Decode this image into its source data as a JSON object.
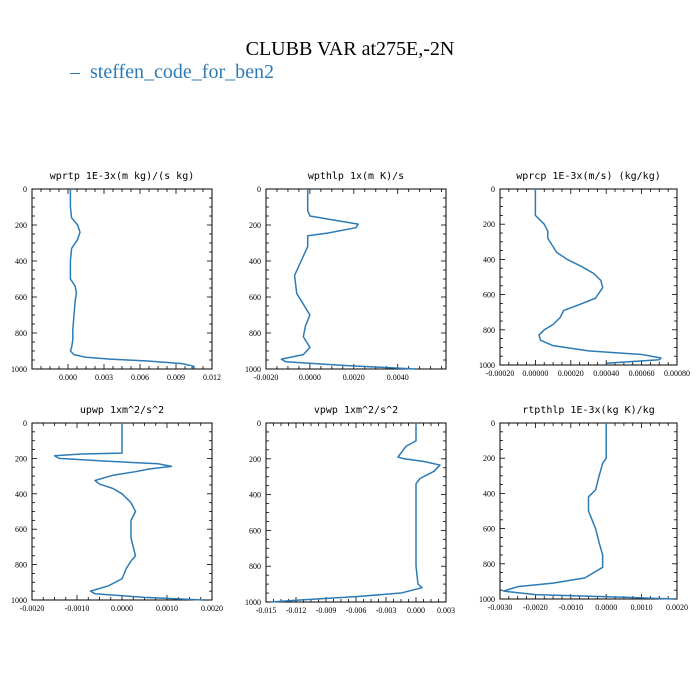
{
  "title": "CLUBB VAR at275E,-2N",
  "legend": [
    {
      "label": "steffen_code_for_ben2",
      "color": "#2c7bb6",
      "marker": "–"
    }
  ],
  "colors": {
    "line": "#2c7bb6",
    "axis": "#000000"
  },
  "chart_data": [
    {
      "type": "line",
      "title": "wprtp  1E-3x(m kg)/(s kg)",
      "xlim": [
        -0.003,
        0.012
      ],
      "ylim": [
        1000,
        0
      ],
      "xticks": [
        0.0,
        0.003,
        0.006,
        0.009,
        0.012
      ],
      "xtick_labels": [
        "0.000",
        "0.003",
        "0.006",
        "0.009",
        "0.012"
      ],
      "yticks": [
        0,
        200,
        400,
        600,
        800,
        1000
      ],
      "ytick_labels": [
        "0",
        "200",
        "400",
        "600",
        "800",
        "1000"
      ],
      "series": [
        {
          "x": [
            0.0002,
            0.0002,
            0.0003,
            0.0008,
            0.001,
            0.0008,
            0.0003,
            0.0002,
            0.0002,
            0.0006,
            0.0007,
            0.0006,
            0.0005,
            0.0004,
            0.0004,
            0.0003,
            0.0002,
            0.0005,
            0.0015,
            0.0035,
            0.0065,
            0.0095,
            0.0105,
            0.0102
          ],
          "y": [
            0,
            100,
            160,
            200,
            240,
            280,
            330,
            400,
            500,
            540,
            580,
            620,
            700,
            780,
            840,
            880,
            900,
            920,
            935,
            945,
            955,
            970,
            985,
            1000
          ]
        }
      ]
    },
    {
      "type": "line",
      "title": "wpthlp  1x(m K)/s",
      "xlim": [
        -0.002,
        0.0062
      ],
      "ylim": [
        1000,
        0
      ],
      "xticks": [
        -0.002,
        0.0,
        0.002,
        0.004
      ],
      "xtick_labels": [
        "-0.0020",
        "0.0000",
        "0.0020",
        "0.0040"
      ],
      "yticks": [
        0,
        200,
        400,
        600,
        800,
        1000
      ],
      "ytick_labels": [
        "0",
        "200",
        "400",
        "600",
        "800",
        "1000"
      ],
      "series": [
        {
          "x": [
            -0.0001,
            -0.0001,
            -0.0001,
            0.0,
            0.0012,
            0.0022,
            0.0021,
            0.0008,
            -0.0001,
            -0.0001,
            -0.0004,
            -0.0007,
            -0.0006,
            -0.0003,
            0.0,
            -0.0002,
            -0.0003,
            0.0,
            -0.0003,
            -0.0013,
            -0.0011,
            0.0015,
            0.0048
          ],
          "y": [
            0,
            80,
            120,
            150,
            175,
            195,
            215,
            245,
            260,
            320,
            400,
            480,
            580,
            640,
            700,
            760,
            820,
            880,
            920,
            945,
            960,
            980,
            1000
          ]
        }
      ]
    },
    {
      "type": "line",
      "title": "wprcp  1E-3x(m/s) (kg/kg)",
      "xlim": [
        -0.0002,
        0.0008
      ],
      "ylim": [
        1000,
        0
      ],
      "xticks": [
        -0.0002,
        0.0,
        0.0002,
        0.0004,
        0.0006,
        0.0008
      ],
      "xtick_labels": [
        "-0.00020",
        "0.00000",
        "0.00020",
        "0.00040",
        "0.00060",
        "0.00080"
      ],
      "yticks": [
        0,
        200,
        400,
        600,
        800,
        1000
      ],
      "ytick_labels": [
        "0",
        "200",
        "400",
        "600",
        "800",
        "1000"
      ],
      "series": [
        {
          "x": [
            0.0,
            0.0,
            0.0,
            5e-05,
            7e-05,
            7e-05,
            0.00012,
            0.00018,
            0.00026,
            0.00033,
            0.00037,
            0.00038,
            0.00034,
            0.00024,
            0.00016,
            0.00014,
            0.0001,
            5e-05,
            2e-05,
            3e-05,
            0.0001,
            0.0003,
            0.0006,
            0.00071,
            0.0007,
            0.0004
          ],
          "y": [
            0,
            100,
            150,
            200,
            240,
            280,
            360,
            400,
            440,
            480,
            520,
            560,
            620,
            660,
            690,
            730,
            770,
            800,
            830,
            860,
            890,
            920,
            940,
            960,
            970,
            990
          ]
        }
      ]
    },
    {
      "type": "line",
      "title": "upwp  1xm^2/s^2",
      "xlim": [
        -0.002,
        0.002
      ],
      "ylim": [
        1000,
        0
      ],
      "xticks": [
        -0.002,
        -0.001,
        0.0,
        0.001,
        0.002
      ],
      "xtick_labels": [
        "-0.0020",
        "-0.0010",
        "0.0000",
        "0.0010",
        "0.0020"
      ],
      "yticks": [
        0,
        200,
        400,
        600,
        800,
        1000
      ],
      "ytick_labels": [
        "0",
        "200",
        "400",
        "600",
        "800",
        "1000"
      ],
      "series": [
        {
          "x": [
            0.0,
            0.0,
            0.0,
            -0.0009,
            -0.0015,
            -0.0014,
            -0.0004,
            0.0008,
            0.0011,
            0.0006,
            0.0003,
            -0.0002,
            -0.0006,
            -0.0005,
            -0.0002,
            0.0,
            0.0002,
            0.0003,
            0.0002,
            0.0002,
            0.0002,
            0.0003,
            0.0002,
            0.0001,
            0.0,
            -0.0003,
            -0.0007,
            -0.0006,
            0.0005,
            0.0018
          ],
          "y": [
            0,
            100,
            170,
            175,
            185,
            200,
            215,
            230,
            245,
            260,
            275,
            295,
            325,
            345,
            370,
            400,
            450,
            500,
            550,
            600,
            650,
            750,
            780,
            820,
            880,
            920,
            950,
            965,
            985,
            1000
          ]
        }
      ]
    },
    {
      "type": "line",
      "title": "vpwp  1xm^2/s^2",
      "xlim": [
        -0.015,
        0.003
      ],
      "ylim": [
        1000,
        0
      ],
      "xticks": [
        -0.015,
        -0.012,
        -0.009,
        -0.006,
        -0.003,
        0.0,
        0.003
      ],
      "xtick_labels": [
        "-0.015",
        "-0.012",
        "-0.009",
        "-0.006",
        "-0.003",
        "0.000",
        "0.003"
      ],
      "yticks": [
        0,
        200,
        400,
        600,
        800,
        1000
      ],
      "ytick_labels": [
        "0",
        "200",
        "400",
        "600",
        "800",
        "1000"
      ],
      "series": [
        {
          "x": [
            0.0,
            0.0,
            -0.001,
            -0.0018,
            -0.0012,
            0.0008,
            0.0024,
            0.0018,
            0.0004,
            0.0,
            0.0,
            0.0,
            0.0,
            0.0,
            0.0,
            0.0002,
            0.0006,
            -0.0015,
            -0.006,
            -0.012,
            -0.0145
          ],
          "y": [
            0,
            100,
            130,
            190,
            200,
            215,
            235,
            270,
            310,
            340,
            400,
            500,
            600,
            700,
            800,
            900,
            920,
            950,
            970,
            990,
            1000
          ]
        }
      ]
    },
    {
      "type": "line",
      "title": "rtpthlp  1E-3x(kg K)/kg",
      "xlim": [
        -0.003,
        0.002
      ],
      "ylim": [
        1000,
        0
      ],
      "xticks": [
        -0.003,
        -0.002,
        -0.001,
        0.0,
        0.001,
        0.002
      ],
      "xtick_labels": [
        "-0.0030",
        "-0.0020",
        "-0.0010",
        "0.0000",
        "0.0010",
        "0.0020"
      ],
      "yticks": [
        0,
        200,
        400,
        600,
        800,
        1000
      ],
      "ytick_labels": [
        "0",
        "200",
        "400",
        "600",
        "800",
        "1000"
      ],
      "series": [
        {
          "x": [
            0.0,
            0.0,
            0.0,
            -0.0001,
            -0.0002,
            -0.0003,
            -0.0005,
            -0.0005,
            -0.0004,
            -0.0003,
            -0.0002,
            -0.0001,
            -0.0001,
            -0.0006,
            -0.0015,
            -0.0025,
            -0.0029,
            -0.002,
            0.0005,
            0.0019
          ],
          "y": [
            0,
            150,
            200,
            230,
            300,
            380,
            420,
            500,
            550,
            600,
            680,
            750,
            820,
            880,
            910,
            930,
            955,
            975,
            990,
            1000
          ]
        }
      ]
    }
  ]
}
